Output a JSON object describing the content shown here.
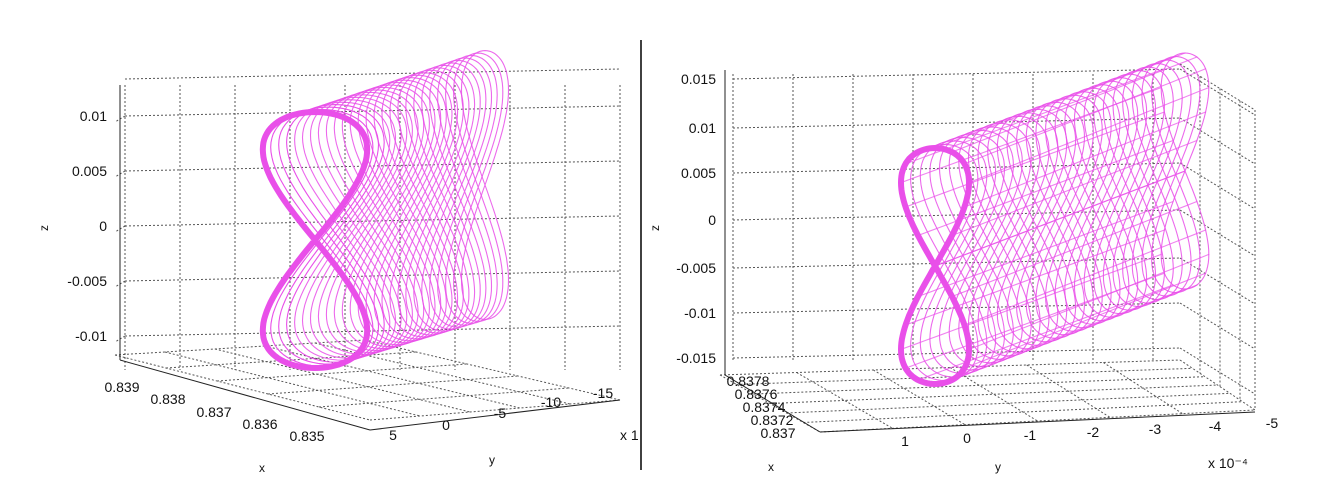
{
  "colors": {
    "curve": "#e94fe9",
    "divider": "#111111"
  },
  "chart_data": [
    {
      "type": "line",
      "subtype": "3d-parametric-curve-family",
      "grid": true,
      "zlabel": "z",
      "xlabel": "x",
      "ylabel": "y",
      "z_ticks": [
        "0.01",
        "0.005",
        "0",
        "-0.005",
        "-0.01"
      ],
      "z_tick_values": [
        0.01,
        0.005,
        0,
        -0.005,
        -0.01
      ],
      "x_ticks": [
        "0.839",
        "0.838",
        "0.837",
        "0.836",
        "0.835"
      ],
      "y_ticks": [
        "5",
        "0",
        "-5",
        "-10",
        "-15"
      ],
      "y_exponent": "x 1",
      "curve_shape": "figure-eight",
      "series_count": 26
    },
    {
      "type": "line",
      "subtype": "3d-parametric-curve-family",
      "grid": true,
      "zlabel": "z",
      "xlabel": "x",
      "ylabel": "y",
      "z_ticks": [
        "0.015",
        "0.01",
        "0.005",
        "0",
        "-0.005",
        "-0.01",
        "-0.015"
      ],
      "z_tick_values": [
        0.015,
        0.01,
        0.005,
        0,
        -0.005,
        -0.01,
        -0.015
      ],
      "x_ticks": [
        "0.8378",
        "0.8376",
        "0.8374",
        "0.8372",
        "0.837"
      ],
      "y_ticks": [
        "1",
        "0",
        "-1",
        "-2",
        "-3",
        "-4",
        "-5"
      ],
      "y_exponent": "x 10⁻⁴",
      "curve_shape": "figure-eight",
      "series_count": 28
    }
  ]
}
